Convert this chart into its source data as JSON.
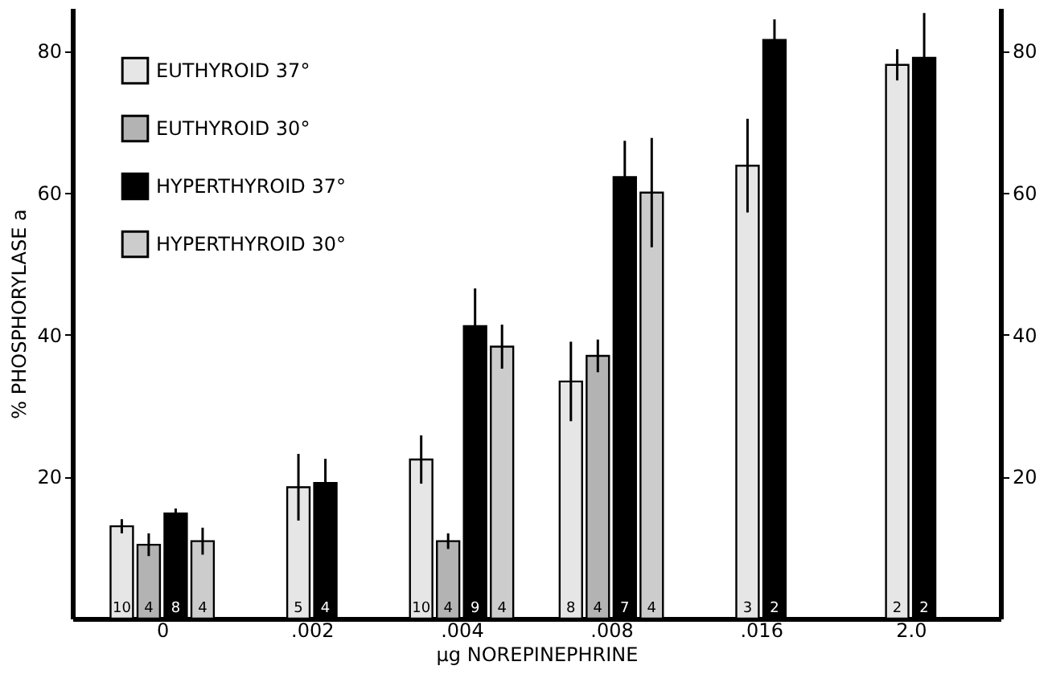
{
  "chart_data": {
    "type": "bar",
    "xlabel": "μg NOREPINEPHRINE",
    "ylabel": "% PHOSPHORYLASE a",
    "categories": [
      "0",
      ".002",
      ".004",
      ".008",
      ".016",
      "2.0"
    ],
    "series": [
      {
        "name": "EUTHYROID 37°",
        "color": "#e6e6e6",
        "values": [
          13,
          18.5,
          22.4,
          33.4,
          63.8,
          78
        ],
        "errors": [
          1,
          4.7,
          3.4,
          5.6,
          6.6,
          2.2
        ]
      },
      {
        "name": "EUTHYROID 30°",
        "color": "#b3b3b3",
        "values": [
          10.4,
          null,
          10.9,
          37,
          null,
          null
        ],
        "errors": [
          1.6,
          null,
          1.1,
          2.3,
          null,
          null
        ]
      },
      {
        "name": "HYPERTHYROID 37°",
        "color": "#000000",
        "values": [
          14.8,
          19.1,
          41.2,
          62.2,
          81.5,
          79
        ],
        "errors": [
          0.7,
          3.4,
          5.3,
          5.1,
          2.9,
          6.3
        ]
      },
      {
        "name": "HYPERTHYROID 30°",
        "color": "#cccccc",
        "values": [
          10.9,
          null,
          38.3,
          60,
          null,
          null
        ],
        "errors": [
          1.9,
          null,
          3.1,
          7.7,
          null,
          null
        ]
      }
    ],
    "annotations": [
      {
        "text": "10",
        "x": "0",
        "y": 0
      },
      {
        "text": "4",
        "x": "0",
        "y": 0
      },
      {
        "text": "8",
        "x": "0",
        "y": 0
      },
      {
        "text": "4",
        "x": "0",
        "y": 0
      },
      {
        "text": "5",
        "x": ".002",
        "y": 0
      },
      {
        "text": "4",
        "x": ".002",
        "y": 0
      },
      {
        "text": "10",
        "x": ".004",
        "y": 0
      },
      {
        "text": "4",
        "x": ".004",
        "y": 0
      },
      {
        "text": "9",
        "x": ".004",
        "y": 0
      },
      {
        "text": "4",
        "x": ".004",
        "y": 0
      },
      {
        "text": "8",
        "x": ".008",
        "y": 0
      },
      {
        "text": "4",
        "x": ".008",
        "y": 0
      },
      {
        "text": "7",
        "x": ".008",
        "y": 0
      },
      {
        "text": "4",
        "x": ".008",
        "y": 0
      },
      {
        "text": "3",
        "x": ".016",
        "y": 0
      },
      {
        "text": "2",
        "x": ".016",
        "y": 0
      },
      {
        "text": "2",
        "x": "2.0",
        "y": 0
      },
      {
        "text": "2",
        "x": "2.0",
        "y": 0
      }
    ],
    "ylim": [
      0,
      86
    ],
    "yticks": [
      20,
      40,
      60,
      80
    ],
    "y2lim": [
      0,
      86
    ],
    "y2ticks": [
      20,
      40,
      60,
      80
    ],
    "legend": "top left",
    "grid": false
  }
}
